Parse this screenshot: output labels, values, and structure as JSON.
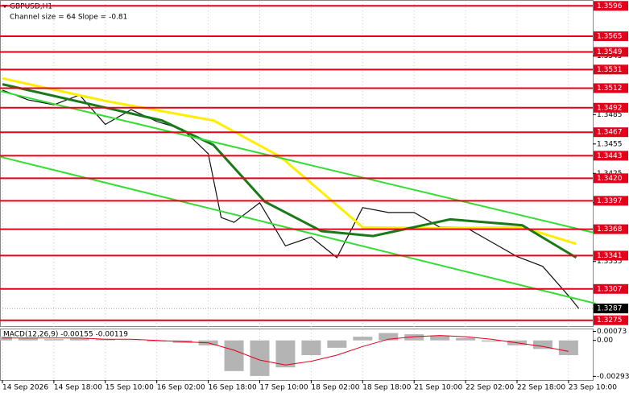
{
  "chart_data": [
    {
      "type": "line",
      "title": "GBPUSD,H1",
      "subtitle": "Channel size = 64 Slope = -0.81",
      "categories": [
        "14 Sep 2026",
        "14 Sep 18:00",
        "15 Sep 10:00",
        "16 Sep 02:00",
        "16 Sep 18:00",
        "17 Sep 10:00",
        "18 Sep 02:00",
        "18 Sep 18:00",
        "21 Sep 10:00",
        "22 Sep 02:00",
        "22 Sep 18:00",
        "23 Sep 10:00"
      ],
      "xlim": [
        -0.05,
        11.47
      ],
      "ylim": [
        1.3269,
        1.3602
      ],
      "yticks": [
        {
          "value": 1.3545,
          "label": "1.3545"
        },
        {
          "value": 1.3485,
          "label": "1.3485"
        },
        {
          "value": 1.3455,
          "label": "1.3455"
        },
        {
          "value": 1.3425,
          "label": "1.3425"
        },
        {
          "value": 1.3395,
          "label": "1.3395"
        },
        {
          "value": 1.3365,
          "label": "1.3365"
        },
        {
          "value": 1.3335,
          "label": "1.3335"
        }
      ],
      "levels": [
        {
          "value": 1.3596,
          "label": "1.3596"
        },
        {
          "value": 1.3565,
          "label": "1.3565"
        },
        {
          "value": 1.3549,
          "label": "1.3549"
        },
        {
          "value": 1.3531,
          "label": "1.3531"
        },
        {
          "value": 1.3512,
          "label": "1.3512"
        },
        {
          "value": 1.3492,
          "label": "1.3492"
        },
        {
          "value": 1.3467,
          "label": "1.3467"
        },
        {
          "value": 1.3443,
          "label": "1.3443"
        },
        {
          "value": 1.342,
          "label": "1.3420"
        },
        {
          "value": 1.3397,
          "label": "1.3397"
        },
        {
          "value": 1.3368,
          "label": "1.3368"
        },
        {
          "value": 1.3341,
          "label": "1.3341"
        },
        {
          "value": 1.3307,
          "label": "1.3307"
        },
        {
          "value": 1.3275,
          "label": "1.3275"
        }
      ],
      "level_color": "#e3001b",
      "current_price": {
        "value": 1.3287,
        "label": "1.3287"
      },
      "series": [
        {
          "color": "#111111",
          "width": 1.2,
          "x": [
            0,
            0.5,
            1,
            1.5,
            2,
            2.5,
            3,
            3.5,
            4,
            4.25,
            4.5,
            5,
            5.5,
            6,
            6.5,
            7,
            7.5,
            8,
            8.5,
            9,
            9.5,
            10,
            10.5,
            11,
            11.2
          ],
          "values": [
            1.351,
            1.35,
            1.3495,
            1.3505,
            1.3475,
            1.349,
            1.3478,
            1.347,
            1.3445,
            1.338,
            1.3375,
            1.3395,
            1.3351,
            1.336,
            1.3339,
            1.339,
            1.3385,
            1.3385,
            1.337,
            1.337,
            1.3355,
            1.334,
            1.333,
            1.33,
            1.3287
          ]
        },
        {
          "color": "#ffee00",
          "width": 3,
          "x": [
            0,
            2,
            4.1,
            5.4,
            7,
            8.4,
            10.1,
            11.15
          ],
          "values": [
            1.3522,
            1.3499,
            1.3479,
            1.3442,
            1.337,
            1.3369,
            1.337,
            1.3353
          ]
        },
        {
          "color": "#1a7a1a",
          "width": 3,
          "x": [
            0,
            3.1,
            4.1,
            5.1,
            6.2,
            7.2,
            8.7,
            10.1,
            11.15
          ],
          "values": [
            1.3516,
            1.3479,
            1.3454,
            1.3396,
            1.3366,
            1.3361,
            1.3378,
            1.3372,
            1.3339
          ]
        },
        {
          "color": "#33dd33",
          "width": 2,
          "x": [
            -0.05,
            11.53
          ],
          "values": [
            1.3509,
            1.3364
          ]
        },
        {
          "color": "#33dd33",
          "width": 2,
          "x": [
            -0.05,
            11.53
          ],
          "values": [
            1.3442,
            1.3292
          ]
        }
      ]
    },
    {
      "type": "bar",
      "title": "MACD(12,26,9) -0.00155 -0.00119",
      "ylim": [
        -0.0033,
        0.0009
      ],
      "yticks": [
        {
          "value": 0.00073,
          "label": "0.00073"
        },
        {
          "value": 0,
          "label": "0.00"
        },
        {
          "value": -0.00293,
          "label": "-0.00293"
        }
      ],
      "x": [
        0,
        0.5,
        1,
        1.5,
        2,
        2.5,
        3,
        3.5,
        4,
        4.5,
        5,
        5.5,
        6,
        6.5,
        7,
        7.5,
        8,
        8.5,
        9,
        9.5,
        10,
        10.5,
        11
      ],
      "values": [
        0.0003,
        0.0002,
        0.0001,
        0.0002,
        0.0001,
        0,
        -0.0001,
        -0.0002,
        -0.0004,
        -0.0025,
        -0.0029,
        -0.0022,
        -0.0012,
        -0.0006,
        0.0003,
        0.0006,
        0.0005,
        0.0004,
        0.0002,
        -0.0001,
        -0.0004,
        -0.0007,
        -0.0012
      ],
      "color": "#b4b4b4",
      "signal": {
        "color": "#e3001b",
        "values": [
          0.0002,
          0.0002,
          0.0002,
          0.0002,
          0.0001,
          0.0001,
          0,
          -0.0001,
          -0.0002,
          -0.0008,
          -0.0016,
          -0.002,
          -0.0017,
          -0.0012,
          -0.0005,
          0.0001,
          0.0003,
          0.0004,
          0.0003,
          0.0001,
          -0.0002,
          -0.0005,
          -0.0009
        ]
      }
    }
  ]
}
